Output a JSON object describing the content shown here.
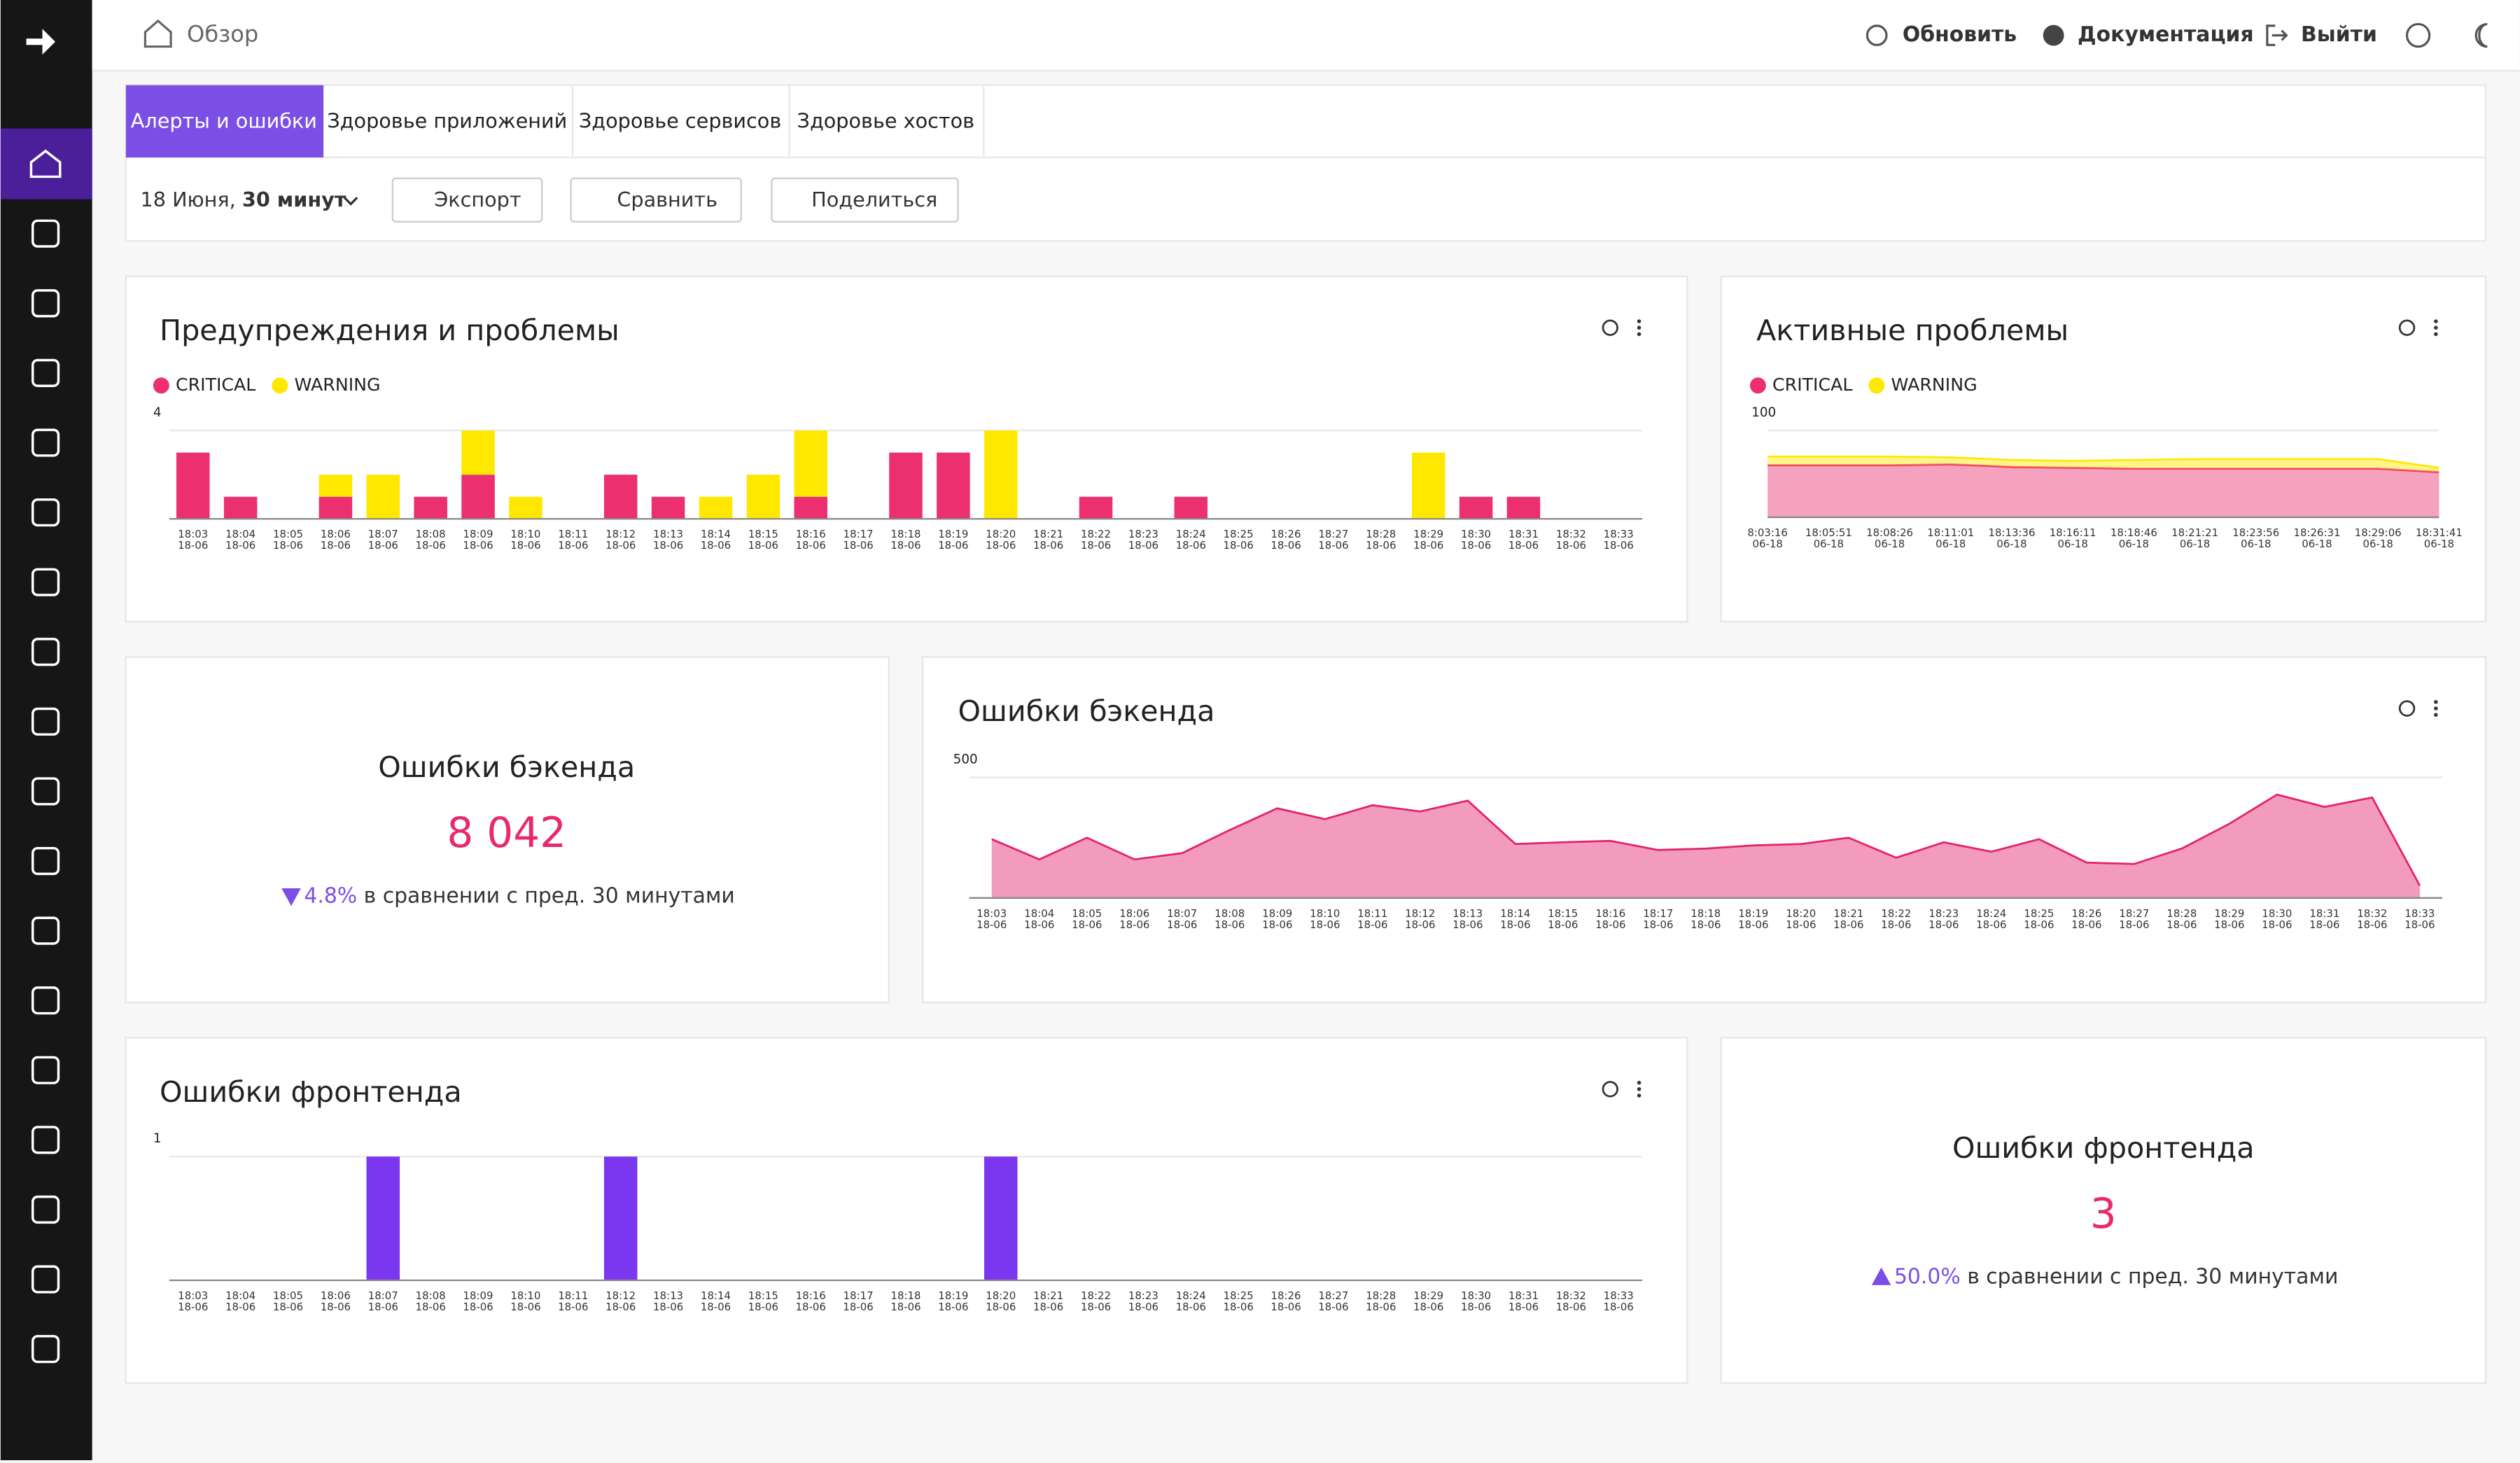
{
  "header": {
    "title": "Обзор",
    "actions": [
      "Обновить",
      "Документация",
      "Выйти"
    ]
  },
  "tabs": [
    "Алерты и ошибки",
    "Здоровье приложений",
    "Здоровье сервисов",
    "Здоровье хостов"
  ],
  "toolbar": {
    "date": "18 Июня,",
    "range": "30 минут",
    "buttons": [
      "Экспорт",
      "Сравнить",
      "Поделиться"
    ]
  },
  "chart_data": [
    {
      "type": "bar",
      "stacked": true,
      "title": "Предупреждения и проблемы",
      "categories": [
        "18:03",
        "18:04",
        "18:05",
        "18:06",
        "18:07",
        "18:08",
        "18:09",
        "18:10",
        "18:11",
        "18:12",
        "18:13",
        "18:14",
        "18:15",
        "18:16",
        "18:17",
        "18:18",
        "18:19",
        "18:20",
        "18:21",
        "18:22",
        "18:23",
        "18:24",
        "18:25",
        "18:26",
        "18:27",
        "18:28",
        "18:29",
        "18:30",
        "18:31",
        "18:32",
        "18:33"
      ],
      "category_sublabel": "18-06",
      "series": [
        {
          "name": "CRITICAL",
          "color": "#ec2f6e",
          "values": [
            3,
            1,
            0,
            1,
            0,
            1,
            2,
            0,
            0,
            2,
            1,
            0,
            0,
            1,
            0,
            3,
            3,
            0,
            0,
            1,
            0,
            1,
            0,
            0,
            0,
            0,
            0,
            1,
            1,
            0,
            0
          ]
        },
        {
          "name": "WARNING",
          "color": "#ffe800",
          "values": [
            0,
            0,
            0,
            1,
            2,
            0,
            2,
            1,
            0,
            0,
            0,
            1,
            2,
            3,
            0,
            0,
            0,
            4,
            0,
            0,
            0,
            0,
            0,
            0,
            0,
            0,
            3,
            0,
            0,
            0,
            0
          ]
        }
      ],
      "ylim": [
        0,
        4
      ],
      "yticks": [
        4
      ],
      "legend": true
    },
    {
      "type": "area",
      "stacked": true,
      "title": "Активные проблемы",
      "categories": [
        "8:03:16",
        "18:05:51",
        "18:08:26",
        "18:11:01",
        "18:13:36",
        "18:16:11",
        "18:18:46",
        "18:21:21",
        "18:23:56",
        "18:26:31",
        "18:29:06",
        "18:31:41"
      ],
      "category_sublabel": "06-18",
      "series": [
        {
          "name": "CRITICAL",
          "color": "#ec2f6e",
          "values": [
            60,
            60,
            60,
            61,
            58,
            57,
            56,
            56,
            56,
            56,
            56,
            52
          ]
        },
        {
          "name": "WARNING",
          "color": "#ffe800",
          "values": [
            10,
            10,
            10,
            8,
            8,
            8,
            10,
            11,
            11,
            11,
            11,
            5
          ]
        }
      ],
      "ylim": [
        0,
        100
      ],
      "yticks": [
        100
      ],
      "legend": true
    },
    {
      "type": "area",
      "title": "Ошибки бэкенда",
      "categories": [
        "18:03",
        "18:04",
        "18:05",
        "18:06",
        "18:07",
        "18:08",
        "18:09",
        "18:10",
        "18:11",
        "18:12",
        "18:13",
        "18:14",
        "18:15",
        "18:16",
        "18:17",
        "18:18",
        "18:19",
        "18:20",
        "18:21",
        "18:22",
        "18:23",
        "18:24",
        "18:25",
        "18:26",
        "18:27",
        "18:28",
        "18:29",
        "18:30",
        "18:31",
        "18:32",
        "18:33"
      ],
      "category_sublabel": "18-06",
      "series": [
        {
          "color": "#e3226b",
          "values": [
            244,
            160,
            250,
            160,
            186,
            282,
            372,
            327,
            385,
            359,
            404,
            224,
            231,
            237,
            199,
            205,
            218,
            224,
            250,
            167,
            231,
            192,
            244,
            147,
            141,
            205,
            308,
            429,
            378,
            417,
            51
          ]
        }
      ],
      "ylim": [
        0,
        500
      ],
      "yticks": [
        500
      ],
      "legend": false
    },
    {
      "type": "bar",
      "title": "Ошибки фронтенда",
      "categories": [
        "18:03",
        "18:04",
        "18:05",
        "18:06",
        "18:07",
        "18:08",
        "18:09",
        "18:10",
        "18:11",
        "18:12",
        "18:13",
        "18:14",
        "18:15",
        "18:16",
        "18:17",
        "18:18",
        "18:19",
        "18:20",
        "18:21",
        "18:22",
        "18:23",
        "18:24",
        "18:25",
        "18:26",
        "18:27",
        "18:28",
        "18:29",
        "18:30",
        "18:31",
        "18:32",
        "18:33"
      ],
      "category_sublabel": "18-06",
      "series": [
        {
          "color": "#7b36ef",
          "values": [
            0,
            0,
            0,
            0,
            1,
            0,
            0,
            0,
            0,
            1,
            0,
            0,
            0,
            0,
            0,
            0,
            0,
            1,
            0,
            0,
            0,
            0,
            0,
            0,
            0,
            0,
            0,
            0,
            0,
            0,
            0
          ]
        }
      ],
      "ylim": [
        0,
        1
      ],
      "yticks": [
        1
      ],
      "legend": false
    }
  ],
  "kpis": [
    {
      "title": "Ошибки бэкенда",
      "value": "8 042",
      "direction": "down",
      "change": "4.8%",
      "note": "в сравнении с пред. 30 минутами"
    },
    {
      "title": "Ошибки фронтенда",
      "value": "3",
      "direction": "up",
      "change": "50.0%",
      "note": "в сравнении с пред. 30 минутами"
    }
  ]
}
